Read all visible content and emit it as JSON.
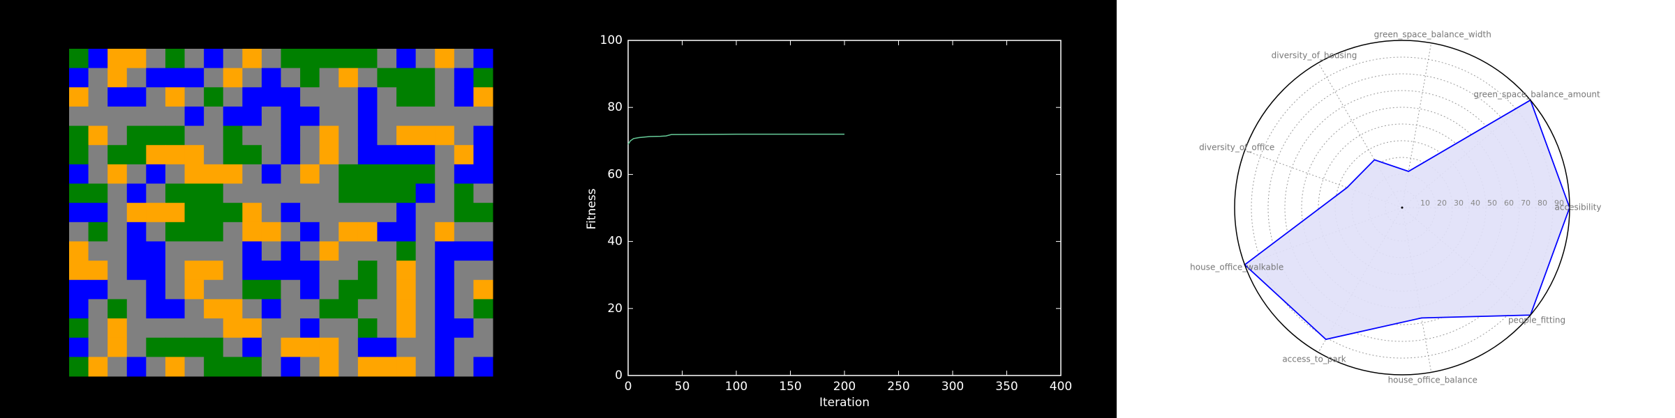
{
  "chart_data": [
    {
      "type": "grid",
      "colors": {
        "G": "#008000",
        "B": "#0000ff",
        "O": "#ffa500",
        "X": "#808080"
      },
      "rows": [
        "GBOOXGXBXOXGGGGGXBXOXB",
        "BXOXBBBXOXBXGXOXGGGXBG",
        "OXBBXOXGXBBBXXXBXGGXBO",
        "XXXXXXBXBBXBBXXBXXXXXX",
        "GOXGGGXXGXXBXOXBXOOOXB",
        "GXGGOOOXGGXBXOXBBBBXOB",
        "BXOXBXOOOXBXOXGGGGGXBB",
        "GGXBXGGGXXXXXXGGGGBXGX",
        "BBXOOOGGGOXBXXXXXBXXGG",
        "XGXBXGGGXOOXBXOOBBXOXX",
        "OXXBBXXXXBXBXOXXXGXBBB",
        "OOXBBXOOXBBBBXXGXOXBXX",
        "BBXXBXOXXGGXBXGGXOXBXO",
        "BXGXBBXOOXBXXGGXXOXBXG",
        "GXOXXXXXOOXXBXXGXOXBBX",
        "BXOXGGGGXBXOOOXBBXXBXX",
        "GOXBXOXGGGXBXOXOOOXBXB"
      ]
    },
    {
      "type": "line",
      "x_label": "Iteration",
      "y_label": "Fitness",
      "x": [
        0,
        2,
        5,
        10,
        20,
        30,
        35,
        40,
        100,
        200
      ],
      "series": [
        {
          "color": "#66cc99",
          "values": [
            69,
            70,
            70.7,
            71,
            71.3,
            71.4,
            71.5,
            71.9,
            72,
            72
          ]
        }
      ],
      "xlim": [
        0,
        400
      ],
      "xticks": [
        0,
        50,
        100,
        150,
        200,
        250,
        300,
        350,
        400
      ],
      "ylim": [
        0,
        100
      ],
      "yticks": [
        0,
        20,
        40,
        60,
        80,
        100
      ]
    },
    {
      "type": "radar",
      "categories": [
        "accesibility",
        "green_space_balance_amount",
        "green_space_balance_width",
        "diversity_of_housing",
        "diversity_of_office",
        "house_office_walkable",
        "access_to_park",
        "house_office_balance",
        "people_fitting"
      ],
      "values": [
        100,
        100,
        22,
        33,
        35,
        100,
        91,
        67,
        100
      ],
      "color": "#0000ff",
      "fill": "#e0e0f8",
      "rlim": [
        0,
        100
      ],
      "rticks": [
        10,
        20,
        30,
        40,
        50,
        60,
        70,
        80,
        90
      ]
    }
  ]
}
